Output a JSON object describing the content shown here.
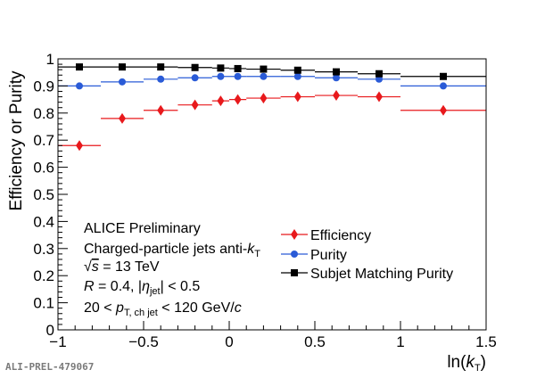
{
  "chart_data": {
    "type": "scatter",
    "xlabel": {
      "prefix": "ln(",
      "var": "k",
      "sub": "T",
      "suffix": ")"
    },
    "ylabel": "Efficiency or Purity",
    "xlim": [
      -1,
      1.5
    ],
    "ylim": [
      0,
      1
    ],
    "xticks": [
      {
        "v": -1,
        "label": "−1"
      },
      {
        "v": -0.5,
        "label": "−0.5"
      },
      {
        "v": 0,
        "label": "0"
      },
      {
        "v": 0.5,
        "label": "0.5"
      },
      {
        "v": 1,
        "label": "1"
      },
      {
        "v": 1.5,
        "label": "1.5"
      }
    ],
    "yticks": [
      {
        "v": 0,
        "label": "0"
      },
      {
        "v": 0.1,
        "label": "0.1"
      },
      {
        "v": 0.2,
        "label": "0.2"
      },
      {
        "v": 0.3,
        "label": "0.3"
      },
      {
        "v": 0.4,
        "label": "0.4"
      },
      {
        "v": 0.5,
        "label": "0.5"
      },
      {
        "v": 0.6,
        "label": "0.6"
      },
      {
        "v": 0.7,
        "label": "0.7"
      },
      {
        "v": 0.8,
        "label": "0.8"
      },
      {
        "v": 0.9,
        "label": "0.9"
      },
      {
        "v": 1,
        "label": "1"
      }
    ],
    "series": [
      {
        "name": "Efficiency",
        "color": "#e8191c",
        "marker": "diamond",
        "points": [
          {
            "x": -0.875,
            "y": 0.68,
            "xlo": -1.0,
            "xhi": -0.75
          },
          {
            "x": -0.625,
            "y": 0.78,
            "xlo": -0.75,
            "xhi": -0.5
          },
          {
            "x": -0.4,
            "y": 0.81,
            "xlo": -0.5,
            "xhi": -0.3
          },
          {
            "x": -0.2,
            "y": 0.83,
            "xlo": -0.3,
            "xhi": -0.1
          },
          {
            "x": -0.05,
            "y": 0.845,
            "xlo": -0.1,
            "xhi": 0.0
          },
          {
            "x": 0.05,
            "y": 0.85,
            "xlo": 0.0,
            "xhi": 0.1
          },
          {
            "x": 0.2,
            "y": 0.855,
            "xlo": 0.1,
            "xhi": 0.3
          },
          {
            "x": 0.4,
            "y": 0.86,
            "xlo": 0.3,
            "xhi": 0.5
          },
          {
            "x": 0.625,
            "y": 0.865,
            "xlo": 0.5,
            "xhi": 0.75
          },
          {
            "x": 0.875,
            "y": 0.86,
            "xlo": 0.75,
            "xhi": 1.0
          },
          {
            "x": 1.25,
            "y": 0.81,
            "xlo": 1.0,
            "xhi": 1.5
          }
        ]
      },
      {
        "name": "Purity",
        "color": "#2a5bd7",
        "marker": "circle",
        "points": [
          {
            "x": -0.875,
            "y": 0.9,
            "xlo": -1.0,
            "xhi": -0.75
          },
          {
            "x": -0.625,
            "y": 0.915,
            "xlo": -0.75,
            "xhi": -0.5
          },
          {
            "x": -0.4,
            "y": 0.925,
            "xlo": -0.5,
            "xhi": -0.3
          },
          {
            "x": -0.2,
            "y": 0.93,
            "xlo": -0.3,
            "xhi": -0.1
          },
          {
            "x": -0.05,
            "y": 0.935,
            "xlo": -0.1,
            "xhi": 0.0
          },
          {
            "x": 0.05,
            "y": 0.935,
            "xlo": 0.0,
            "xhi": 0.1
          },
          {
            "x": 0.2,
            "y": 0.935,
            "xlo": 0.1,
            "xhi": 0.3
          },
          {
            "x": 0.4,
            "y": 0.935,
            "xlo": 0.3,
            "xhi": 0.5
          },
          {
            "x": 0.625,
            "y": 0.93,
            "xlo": 0.5,
            "xhi": 0.75
          },
          {
            "x": 0.875,
            "y": 0.925,
            "xlo": 0.75,
            "xhi": 1.0
          },
          {
            "x": 1.25,
            "y": 0.9,
            "xlo": 1.0,
            "xhi": 1.5
          }
        ]
      },
      {
        "name": "Subjet Matching Purity",
        "color": "#000000",
        "marker": "square",
        "points": [
          {
            "x": -0.875,
            "y": 0.97,
            "xlo": -1.0,
            "xhi": -0.75
          },
          {
            "x": -0.625,
            "y": 0.97,
            "xlo": -0.75,
            "xhi": -0.5
          },
          {
            "x": -0.4,
            "y": 0.97,
            "xlo": -0.5,
            "xhi": -0.3
          },
          {
            "x": -0.2,
            "y": 0.968,
            "xlo": -0.3,
            "xhi": -0.1
          },
          {
            "x": -0.05,
            "y": 0.966,
            "xlo": -0.1,
            "xhi": 0.0
          },
          {
            "x": 0.05,
            "y": 0.964,
            "xlo": 0.0,
            "xhi": 0.1
          },
          {
            "x": 0.2,
            "y": 0.962,
            "xlo": 0.1,
            "xhi": 0.3
          },
          {
            "x": 0.4,
            "y": 0.958,
            "xlo": 0.3,
            "xhi": 0.5
          },
          {
            "x": 0.625,
            "y": 0.952,
            "xlo": 0.5,
            "xhi": 0.75
          },
          {
            "x": 0.875,
            "y": 0.945,
            "xlo": 0.75,
            "xhi": 1.0
          },
          {
            "x": 1.25,
            "y": 0.935,
            "xlo": 1.0,
            "xhi": 1.5
          }
        ]
      }
    ],
    "legend_position": "bottom-center",
    "annotations": {
      "line1": "ALICE Preliminary",
      "line2_main": "Charged-particle jets anti-",
      "line2_var": "k",
      "line2_sub": "T",
      "line3_sqrt": "√",
      "line3_var": "s",
      "line3_rest": " = 13 TeV",
      "line4_var": "R",
      "line4_mid": " = 0.4, |",
      "line4_eta": "η",
      "line4_sub": "jet",
      "line4_end": "| < 0.5",
      "line5_start": "20 < ",
      "line5_var": "p",
      "line5_sub": "T, ch jet",
      "line5_mid": " < 120 GeV/",
      "line5_c": "c"
    }
  },
  "credit": "ALI-PREL-479067"
}
